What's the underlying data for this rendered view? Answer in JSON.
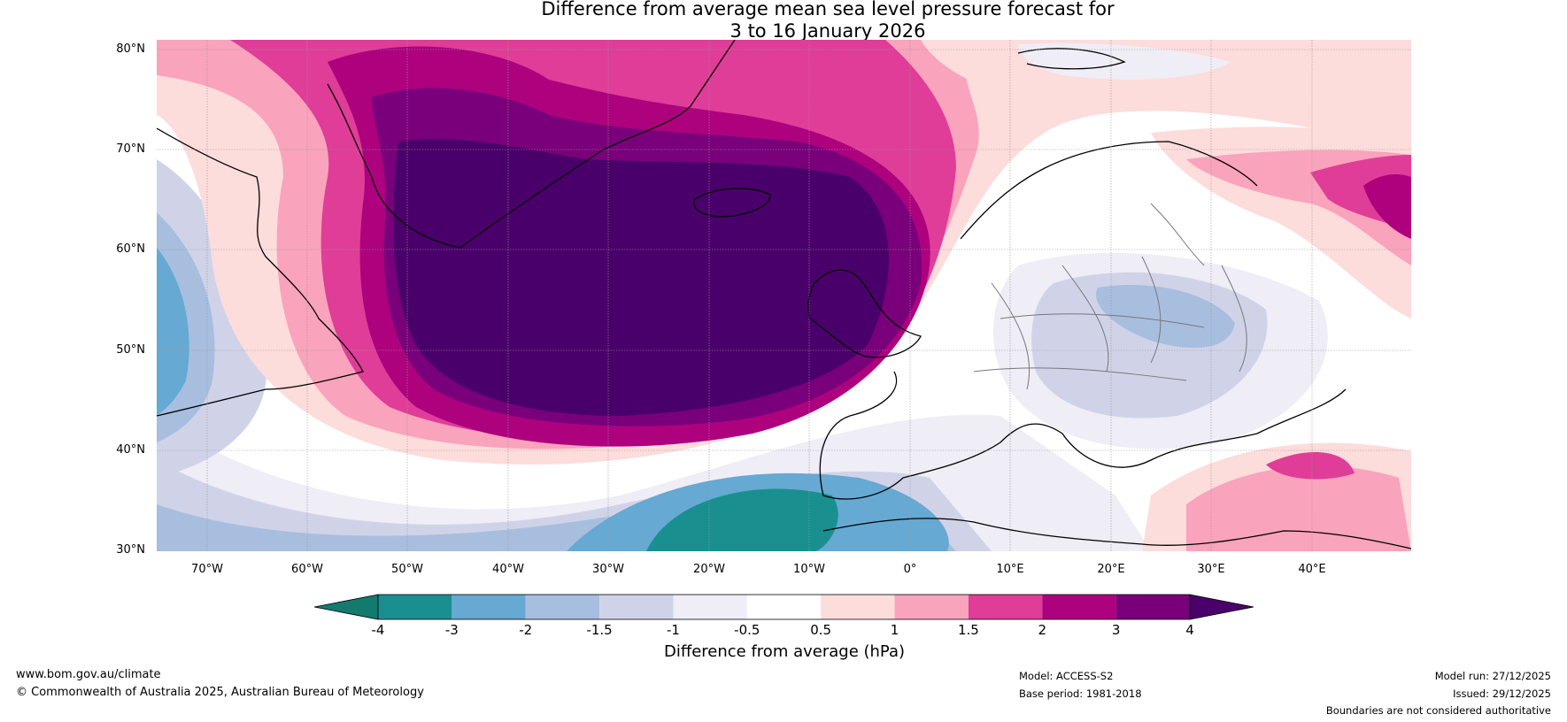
{
  "title": {
    "line1": "Difference from average mean sea level pressure forecast for",
    "line2": "3 to 16 January 2026"
  },
  "map": {
    "lat_labels": [
      "80°N",
      "70°N",
      "60°N",
      "50°N",
      "40°N",
      "30°N"
    ],
    "lon_labels": [
      "70°W",
      "60°W",
      "50°W",
      "40°W",
      "30°W",
      "20°W",
      "10°W",
      "0°",
      "10°E",
      "20°E",
      "30°E",
      "40°E"
    ]
  },
  "colorbar": {
    "ticks": [
      "-4",
      "-3",
      "-2",
      "-1.5",
      "-1",
      "-0.5",
      "0.5",
      "1",
      "1.5",
      "2",
      "3",
      "4"
    ],
    "colors": [
      "#1a8f8f",
      "#66a9d2",
      "#a8bedf",
      "#d0d3e8",
      "#efedf5",
      "#ffffff",
      "#fddcdc",
      "#f9a3bc",
      "#df3d98",
      "#ad017e",
      "#79007a",
      "#4a006a"
    ],
    "under_color": "#137a6e",
    "over_color": "#4a006a",
    "label": "Difference from average (hPa)"
  },
  "footer": {
    "url": "www.bom.gov.au/climate",
    "copyright": "© Commonwealth of Australia 2025, Australian Bureau of Meteorology",
    "model": "Model: ACCESS-S2",
    "base_period": "Base period: 1981-2018",
    "model_run": "Model run: 27/12/2025",
    "issued": "Issued: 29/12/2025",
    "disclaimer": "Boundaries are not considered authoritative"
  }
}
